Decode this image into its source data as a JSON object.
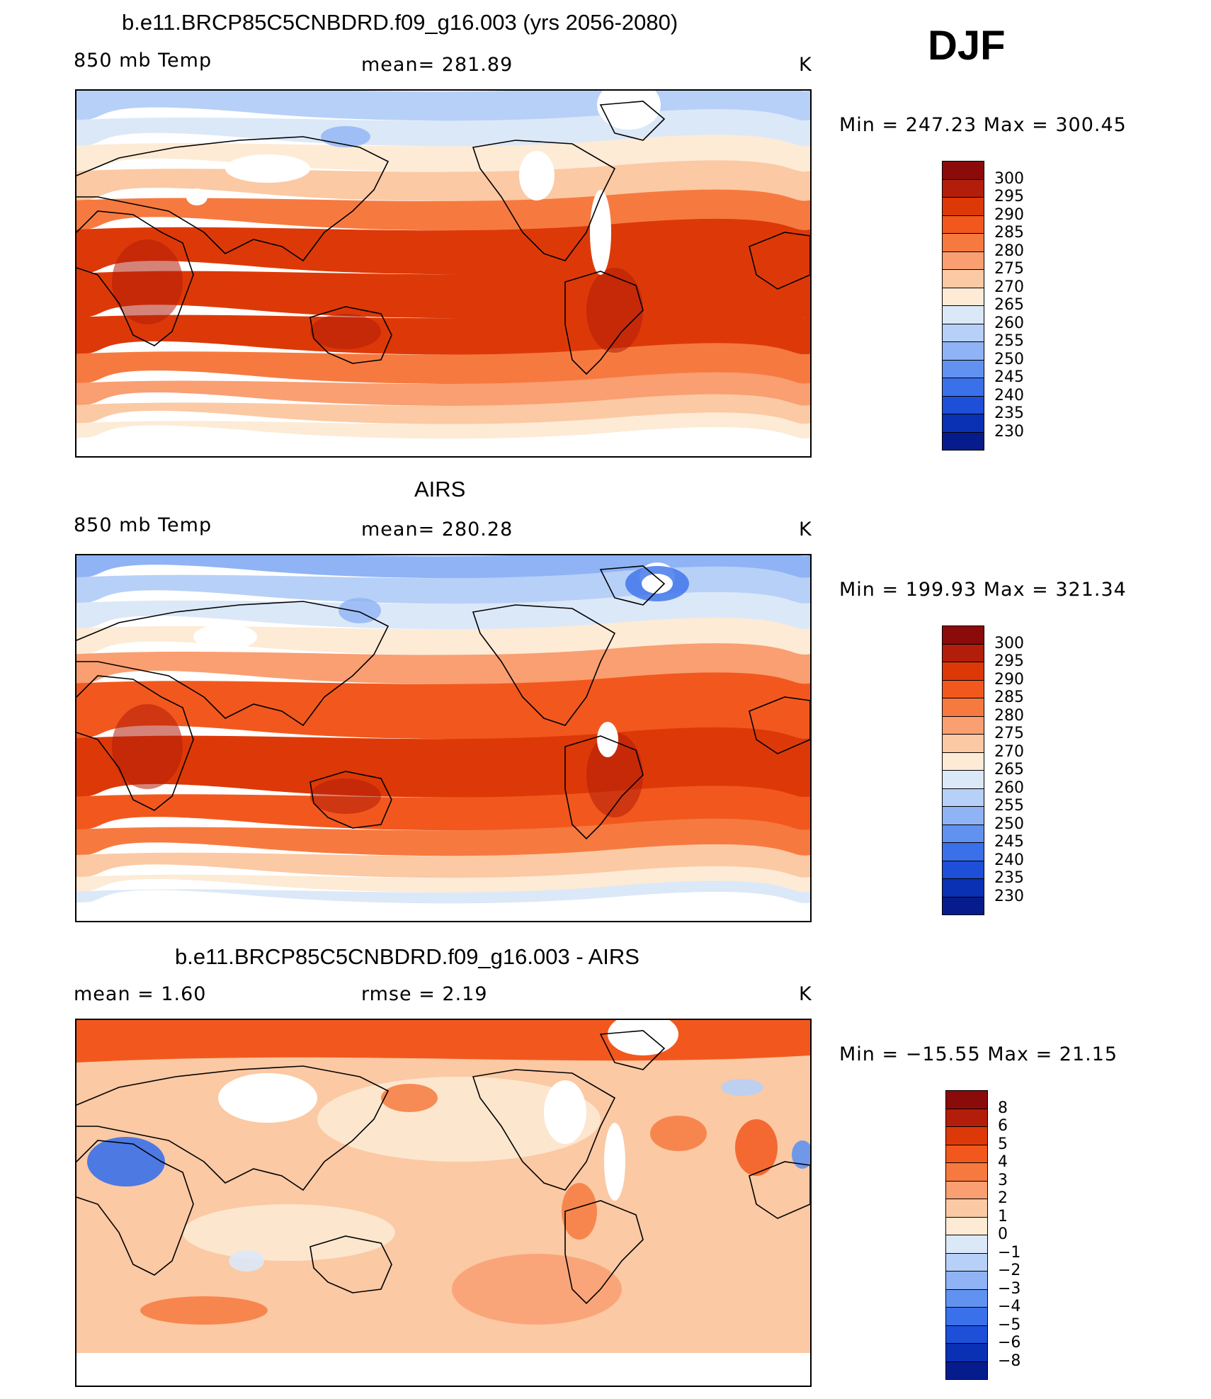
{
  "season": "DJF",
  "panels": [
    {
      "id": "model",
      "title": "b.e11.BRCP85C5CNBDRD.f09_g16.003 (yrs 2056-2080)",
      "left_label": "850 mb Temp",
      "center_label": "mean= 281.89",
      "units": "K",
      "minmax": "Min = 247.23 Max = 300.45",
      "map_kind": "abs",
      "colorbar": {
        "labels": [
          "300",
          "295",
          "290",
          "285",
          "280",
          "275",
          "270",
          "265",
          "260",
          "255",
          "250",
          "245",
          "240",
          "235",
          "230"
        ],
        "colors": [
          "#8b0a0a",
          "#b31e0a",
          "#dd3908",
          "#f2581e",
          "#f67a40",
          "#f99f72",
          "#fbc9a4",
          "#fdebd6",
          "#dbe8f8",
          "#b7d0f8",
          "#8fb3f4",
          "#6192f0",
          "#3a70ea",
          "#1d4fd8",
          "#0a30b4",
          "#061c8c"
        ]
      }
    },
    {
      "id": "obs",
      "title": "AIRS",
      "left_label": "850 mb Temp",
      "center_label": "mean= 280.28",
      "units": "K",
      "minmax": "Min = 199.93 Max = 321.34",
      "map_kind": "abs",
      "colorbar": {
        "labels": [
          "300",
          "295",
          "290",
          "285",
          "280",
          "275",
          "270",
          "265",
          "260",
          "255",
          "250",
          "245",
          "240",
          "235",
          "230"
        ],
        "colors": [
          "#8b0a0a",
          "#b31e0a",
          "#dd3908",
          "#f2581e",
          "#f67a40",
          "#f99f72",
          "#fbc9a4",
          "#fdebd6",
          "#dbe8f8",
          "#b7d0f8",
          "#8fb3f4",
          "#6192f0",
          "#3a70ea",
          "#1d4fd8",
          "#0a30b4",
          "#061c8c"
        ]
      }
    },
    {
      "id": "diff",
      "title": "b.e11.BRCP85C5CNBDRD.f09_g16.003 - AIRS",
      "left_label": "mean =    1.60",
      "center_label": "rmse =    2.19",
      "units": "K",
      "minmax": "Min = −15.55 Max =   21.15",
      "map_kind": "diff",
      "colorbar": {
        "labels": [
          "8",
          "6",
          "5",
          "4",
          "3",
          "2",
          "1",
          "0",
          "−1",
          "−2",
          "−3",
          "−4",
          "−5",
          "−6",
          "−8"
        ],
        "colors": [
          "#8b0a0a",
          "#b31e0a",
          "#dd3908",
          "#f2581e",
          "#f67a40",
          "#f99f72",
          "#fbc9a4",
          "#fdebd6",
          "#dbe8f8",
          "#b7d0f8",
          "#8fb3f4",
          "#6192f0",
          "#3a70ea",
          "#1d4fd8",
          "#0a30b4",
          "#061c8c"
        ]
      }
    }
  ]
}
